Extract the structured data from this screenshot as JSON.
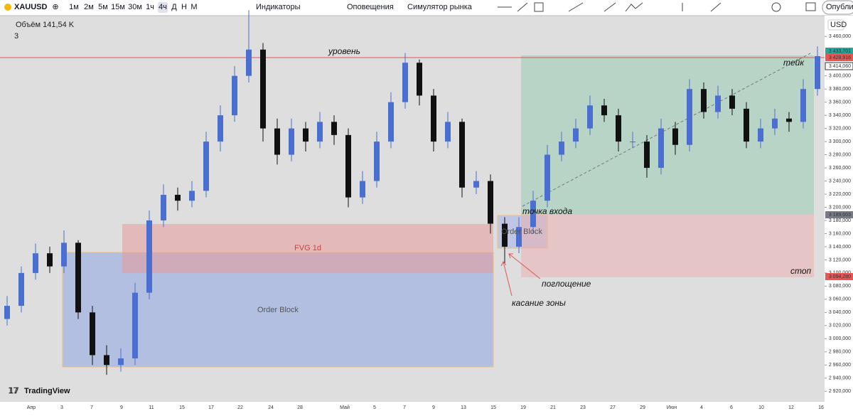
{
  "toolbar": {
    "symbol": "XAUUSD",
    "intervals": [
      "1м",
      "2м",
      "5м",
      "15м",
      "30м",
      "1ч",
      "4ч",
      "Д",
      "Н",
      "М"
    ],
    "indicators": "Индикаторы",
    "alerts": "Оповещения",
    "replay": "Симулятор рынка",
    "publish": "Опубли"
  },
  "legend": {
    "volume": "Объём 141,54 K",
    "count": "3"
  },
  "currency": "USD",
  "logo": "TradingView",
  "chart_data": {
    "type": "candlestick",
    "up_color": "#4a6fd0",
    "down_color": "#111111",
    "ylim": [
      2904,
      3483
    ],
    "yticks": [
      {
        "value": 3460,
        "label": "3 460,000"
      },
      {
        "value": 3400,
        "label": "3 400,000"
      },
      {
        "value": 3380,
        "label": "3 380,000"
      },
      {
        "value": 3360,
        "label": "3 360,000"
      },
      {
        "value": 3340,
        "label": "3 340,000"
      },
      {
        "value": 3320,
        "label": "3 320,000"
      },
      {
        "value": 3300,
        "label": "3 300,000"
      },
      {
        "value": 3280,
        "label": "3 280,000"
      },
      {
        "value": 3260,
        "label": "3 260,000"
      },
      {
        "value": 3240,
        "label": "3 240,000"
      },
      {
        "value": 3220,
        "label": "3 220,000"
      },
      {
        "value": 3200,
        "label": "3 200,000"
      },
      {
        "value": 3180,
        "label": "3 180,000"
      },
      {
        "value": 3160,
        "label": "3 160,000"
      },
      {
        "value": 3140,
        "label": "3 140,000"
      },
      {
        "value": 3120,
        "label": "3 120,000"
      },
      {
        "value": 3100,
        "label": "3 100,000"
      },
      {
        "value": 3080,
        "label": "3 080,000"
      },
      {
        "value": 3060,
        "label": "3 060,000"
      },
      {
        "value": 3040,
        "label": "3 040,000"
      },
      {
        "value": 3020,
        "label": "3 020,000"
      },
      {
        "value": 3000,
        "label": "3 000,000"
      },
      {
        "value": 2980,
        "label": "2 980,000"
      },
      {
        "value": 2960,
        "label": "2 960,000"
      },
      {
        "value": 2940,
        "label": "2 940,000"
      },
      {
        "value": 2920,
        "label": "2 920,000"
      }
    ],
    "time_labels": [
      "Апр",
      "3",
      "7",
      "9",
      "11",
      "15",
      "17",
      "22",
      "24",
      "28",
      "Май",
      "5",
      "7",
      "9",
      "13",
      "15",
      "19",
      "21",
      "23",
      "27",
      "29",
      "Июн",
      "4",
      "6",
      "10",
      "12",
      "16"
    ],
    "candles": [
      [
        3030,
        3065,
        3020,
        3050
      ],
      [
        3050,
        3110,
        3040,
        3100
      ],
      [
        3100,
        3145,
        3090,
        3130
      ],
      [
        3130,
        3140,
        3100,
        3110
      ],
      [
        3110,
        3165,
        3100,
        3146
      ],
      [
        3146,
        3150,
        3030,
        3040
      ],
      [
        3040,
        3050,
        2960,
        2975
      ],
      [
        2975,
        2990,
        2945,
        2960
      ],
      [
        2960,
        2985,
        2950,
        2970
      ],
      [
        2970,
        3085,
        2960,
        3070
      ],
      [
        3070,
        3195,
        3060,
        3180
      ],
      [
        3180,
        3235,
        3170,
        3219
      ],
      [
        3219,
        3230,
        3195,
        3210
      ],
      [
        3210,
        3240,
        3200,
        3225
      ],
      [
        3225,
        3315,
        3215,
        3300
      ],
      [
        3300,
        3355,
        3285,
        3340
      ],
      [
        3340,
        3415,
        3330,
        3400
      ],
      [
        3400,
        3500,
        3390,
        3440
      ],
      [
        3440,
        3450,
        3300,
        3320
      ],
      [
        3320,
        3335,
        3265,
        3280
      ],
      [
        3280,
        3335,
        3270,
        3320
      ],
      [
        3320,
        3330,
        3285,
        3300
      ],
      [
        3300,
        3345,
        3290,
        3330
      ],
      [
        3330,
        3340,
        3295,
        3310
      ],
      [
        3310,
        3320,
        3200,
        3215
      ],
      [
        3215,
        3255,
        3205,
        3240
      ],
      [
        3240,
        3315,
        3230,
        3300
      ],
      [
        3300,
        3375,
        3290,
        3360
      ],
      [
        3360,
        3435,
        3350,
        3420
      ],
      [
        3420,
        3425,
        3355,
        3370
      ],
      [
        3370,
        3380,
        3285,
        3300
      ],
      [
        3300,
        3345,
        3290,
        3330
      ],
      [
        3330,
        3335,
        3215,
        3230
      ],
      [
        3230,
        3255,
        3220,
        3240
      ],
      [
        3240,
        3250,
        3160,
        3175
      ],
      [
        3175,
        3185,
        3115,
        3140
      ],
      [
        3140,
        3185,
        3130,
        3170
      ],
      [
        3170,
        3225,
        3160,
        3210
      ],
      [
        3210,
        3295,
        3200,
        3280
      ],
      [
        3280,
        3315,
        3270,
        3300
      ],
      [
        3300,
        3335,
        3290,
        3320
      ],
      [
        3320,
        3370,
        3310,
        3355
      ],
      [
        3355,
        3365,
        3330,
        3340
      ],
      [
        3340,
        3350,
        3285,
        3300
      ],
      [
        3300,
        3315,
        3290,
        3300
      ],
      [
        3300,
        3310,
        3245,
        3260
      ],
      [
        3260,
        3335,
        3250,
        3320
      ],
      [
        3320,
        3330,
        3280,
        3295
      ],
      [
        3295,
        3395,
        3285,
        3380
      ],
      [
        3380,
        3390,
        3335,
        3345
      ],
      [
        3345,
        3385,
        3335,
        3370
      ],
      [
        3370,
        3380,
        3340,
        3350
      ],
      [
        3350,
        3360,
        3290,
        3300
      ],
      [
        3300,
        3335,
        3290,
        3320
      ],
      [
        3320,
        3350,
        3310,
        3335
      ],
      [
        3335,
        3345,
        3315,
        3330
      ],
      [
        3330,
        3395,
        3320,
        3380
      ],
      [
        3380,
        3445,
        3370,
        3430
      ]
    ],
    "price_labels": [
      "3 433,701",
      "3 428,916",
      "3 414,060",
      "3 189,003",
      "3 094,280"
    ],
    "annotations": {
      "level": "уровень",
      "take": "тейк",
      "entry": "точка входа",
      "stop": "стоп",
      "fvg": "FVG 1d",
      "ob_big": "Order Block",
      "ob_small": "Order Block",
      "engulf": "поглощение",
      "touch": "касание зоны"
    }
  }
}
